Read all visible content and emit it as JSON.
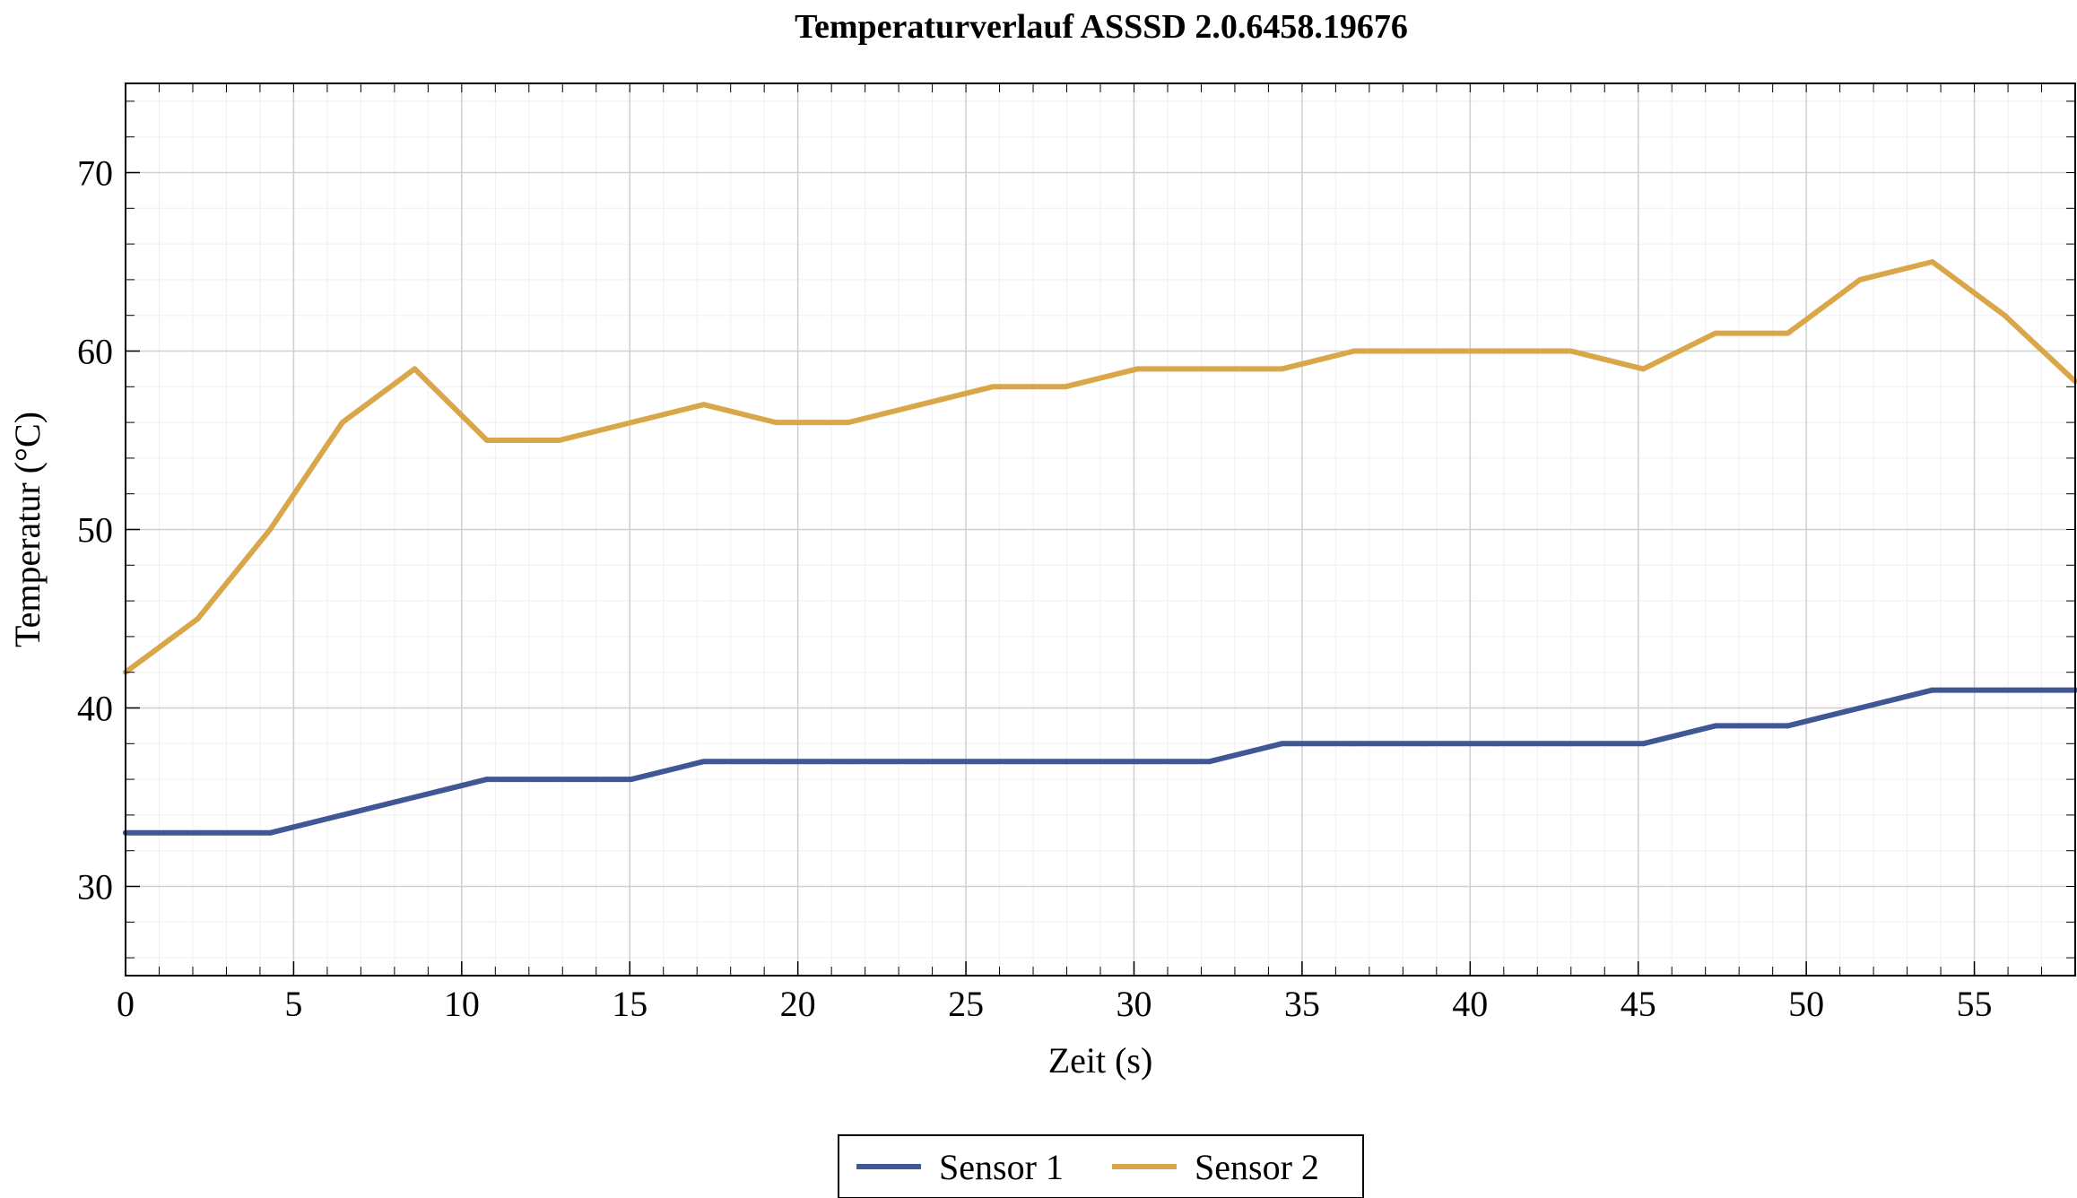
{
  "chart_data": {
    "type": "line",
    "title": "Temperaturverlauf ASSSD 2.0.6458.19676",
    "xlabel": "Zeit (s)",
    "ylabel": "Temperatur (°C)",
    "xlim": [
      0,
      58
    ],
    "ylim": [
      25,
      75
    ],
    "xticks": [
      0,
      5,
      10,
      15,
      20,
      25,
      30,
      35,
      40,
      45,
      50,
      55
    ],
    "yticks": [
      30,
      40,
      50,
      60,
      70
    ],
    "grid": true,
    "legend_position": "bottom-center",
    "series": [
      {
        "name": "Sensor 1",
        "color": "#3f5794",
        "x": [
          0,
          2.15,
          4.3,
          6.45,
          8.6,
          10.75,
          12.9,
          15.05,
          17.2,
          19.35,
          21.5,
          23.65,
          25.8,
          27.95,
          30.1,
          32.25,
          34.4,
          36.55,
          38.7,
          40.85,
          43.0,
          45.15,
          47.3,
          49.45,
          51.6,
          53.75,
          55.9,
          58.0
        ],
        "y": [
          33,
          33,
          33,
          34,
          35,
          36,
          36,
          36,
          37,
          37,
          37,
          37,
          37,
          37,
          37,
          37,
          38,
          38,
          38,
          38,
          38,
          38,
          39,
          39,
          40,
          41,
          41,
          41
        ]
      },
      {
        "name": "Sensor 2",
        "color": "#d9a74a",
        "x": [
          0,
          2.15,
          4.3,
          6.45,
          8.6,
          10.75,
          12.9,
          15.05,
          17.2,
          19.35,
          21.5,
          23.65,
          25.8,
          27.95,
          30.1,
          32.25,
          34.4,
          36.55,
          38.7,
          40.85,
          43.0,
          45.15,
          47.3,
          49.45,
          51.6,
          53.75,
          55.9,
          58.0
        ],
        "y": [
          42,
          45,
          50,
          56,
          59,
          55,
          55,
          56,
          57,
          56,
          56,
          57,
          58,
          58,
          59,
          59,
          59,
          60,
          60,
          60,
          60,
          59,
          61,
          61,
          64,
          65,
          62,
          58.3
        ]
      }
    ]
  }
}
